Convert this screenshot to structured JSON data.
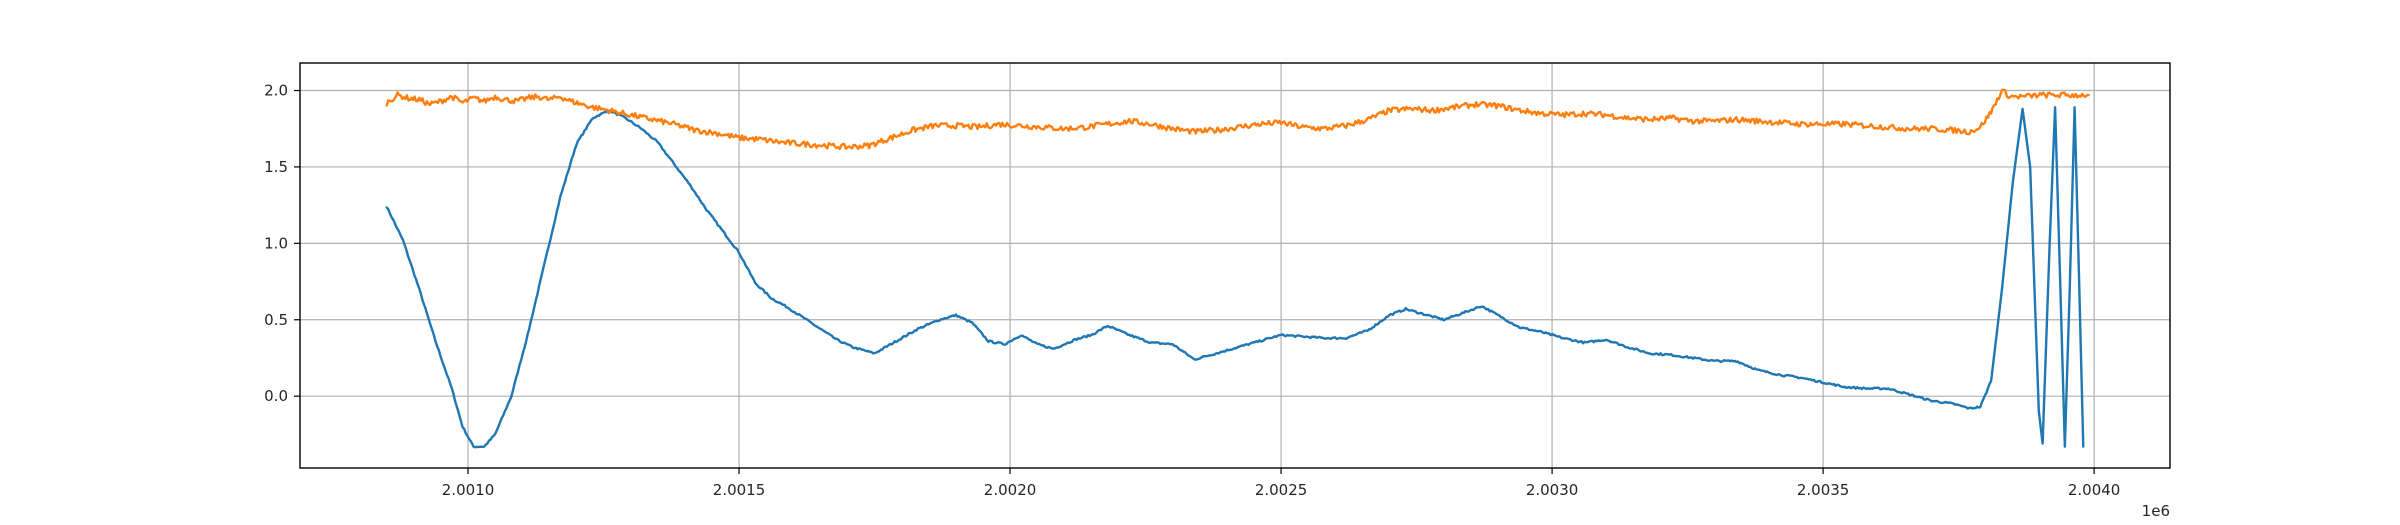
{
  "chart_data": {
    "type": "line",
    "title": "",
    "xlabel": "",
    "ylabel": "",
    "x_offset_label": "1e6",
    "xlim": [
      2000690,
      2004140
    ],
    "ylim": [
      -0.47,
      2.18
    ],
    "grid": true,
    "legend": "none",
    "x_ticks": [
      {
        "value": 2001000,
        "label": "2.0010"
      },
      {
        "value": 2001500,
        "label": "2.0015"
      },
      {
        "value": 2002000,
        "label": "2.0020"
      },
      {
        "value": 2002500,
        "label": "2.0025"
      },
      {
        "value": 2003000,
        "label": "2.0030"
      },
      {
        "value": 2003500,
        "label": "2.0035"
      },
      {
        "value": 2004000,
        "label": "2.0040"
      }
    ],
    "y_ticks": [
      {
        "value": 0.0,
        "label": "0.0"
      },
      {
        "value": 0.5,
        "label": "0.5"
      },
      {
        "value": 1.0,
        "label": "1.0"
      },
      {
        "value": 1.5,
        "label": "1.5"
      },
      {
        "value": 2.0,
        "label": "2.0"
      }
    ],
    "series": [
      {
        "color": "#1f77b4",
        "points": [
          [
            2000850,
            1.24
          ],
          [
            2000880,
            1.02
          ],
          [
            2000910,
            0.7
          ],
          [
            2000940,
            0.36
          ],
          [
            2000970,
            0.05
          ],
          [
            2000990,
            -0.2
          ],
          [
            2001010,
            -0.33
          ],
          [
            2001030,
            -0.33
          ],
          [
            2001050,
            -0.25
          ],
          [
            2001080,
            0.0
          ],
          [
            2001110,
            0.4
          ],
          [
            2001140,
            0.85
          ],
          [
            2001170,
            1.3
          ],
          [
            2001200,
            1.65
          ],
          [
            2001230,
            1.82
          ],
          [
            2001260,
            1.87
          ],
          [
            2001290,
            1.82
          ],
          [
            2001320,
            1.75
          ],
          [
            2001350,
            1.66
          ],
          [
            2001380,
            1.52
          ],
          [
            2001410,
            1.38
          ],
          [
            2001440,
            1.22
          ],
          [
            2001470,
            1.08
          ],
          [
            2001500,
            0.94
          ],
          [
            2001530,
            0.74
          ],
          [
            2001560,
            0.64
          ],
          [
            2001590,
            0.58
          ],
          [
            2001620,
            0.51
          ],
          [
            2001650,
            0.44
          ],
          [
            2001680,
            0.37
          ],
          [
            2001710,
            0.32
          ],
          [
            2001750,
            0.28
          ],
          [
            2001790,
            0.36
          ],
          [
            2001830,
            0.44
          ],
          [
            2001870,
            0.5
          ],
          [
            2001900,
            0.53
          ],
          [
            2001930,
            0.48
          ],
          [
            2001960,
            0.36
          ],
          [
            2001990,
            0.34
          ],
          [
            2002020,
            0.4
          ],
          [
            2002050,
            0.34
          ],
          [
            2002080,
            0.31
          ],
          [
            2002120,
            0.37
          ],
          [
            2002150,
            0.4
          ],
          [
            2002180,
            0.46
          ],
          [
            2002220,
            0.4
          ],
          [
            2002260,
            0.35
          ],
          [
            2002300,
            0.34
          ],
          [
            2002340,
            0.24
          ],
          [
            2002380,
            0.28
          ],
          [
            2002420,
            0.32
          ],
          [
            2002460,
            0.36
          ],
          [
            2002500,
            0.4
          ],
          [
            2002540,
            0.39
          ],
          [
            2002580,
            0.38
          ],
          [
            2002620,
            0.38
          ],
          [
            2002660,
            0.43
          ],
          [
            2002700,
            0.53
          ],
          [
            2002730,
            0.57
          ],
          [
            2002760,
            0.54
          ],
          [
            2002800,
            0.5
          ],
          [
            2002840,
            0.55
          ],
          [
            2002870,
            0.59
          ],
          [
            2002900,
            0.53
          ],
          [
            2002940,
            0.45
          ],
          [
            2002980,
            0.42
          ],
          [
            2003020,
            0.38
          ],
          [
            2003060,
            0.35
          ],
          [
            2003100,
            0.37
          ],
          [
            2003140,
            0.32
          ],
          [
            2003180,
            0.28
          ],
          [
            2003220,
            0.27
          ],
          [
            2003260,
            0.25
          ],
          [
            2003300,
            0.23
          ],
          [
            2003340,
            0.23
          ],
          [
            2003380,
            0.17
          ],
          [
            2003420,
            0.14
          ],
          [
            2003460,
            0.12
          ],
          [
            2003500,
            0.09
          ],
          [
            2003540,
            0.06
          ],
          [
            2003580,
            0.05
          ],
          [
            2003620,
            0.05
          ],
          [
            2003660,
            0.01
          ],
          [
            2003700,
            -0.03
          ],
          [
            2003740,
            -0.05
          ],
          [
            2003770,
            -0.08
          ],
          [
            2003790,
            -0.07
          ],
          [
            2003810,
            0.1
          ],
          [
            2003830,
            0.7
          ],
          [
            2003850,
            1.4
          ],
          [
            2003868,
            1.88
          ],
          [
            2003882,
            1.5
          ],
          [
            2003898,
            -0.1
          ],
          [
            2003905,
            -0.31
          ],
          [
            2003918,
            1.0
          ],
          [
            2003928,
            1.89
          ],
          [
            2003937,
            0.8
          ],
          [
            2003946,
            -0.33
          ],
          [
            2003955,
            0.7
          ],
          [
            2003964,
            1.89
          ],
          [
            2003972,
            0.8
          ],
          [
            2003980,
            -0.33
          ]
        ]
      },
      {
        "color": "#ff7f0e",
        "points": [
          [
            2000850,
            1.92
          ],
          [
            2000870,
            1.97
          ],
          [
            2000890,
            1.95
          ],
          [
            2000910,
            1.94
          ],
          [
            2000930,
            1.91
          ],
          [
            2000950,
            1.93
          ],
          [
            2000970,
            1.96
          ],
          [
            2000990,
            1.92
          ],
          [
            2001010,
            1.95
          ],
          [
            2001030,
            1.93
          ],
          [
            2001050,
            1.96
          ],
          [
            2001070,
            1.94
          ],
          [
            2001090,
            1.93
          ],
          [
            2001110,
            1.95
          ],
          [
            2001130,
            1.96
          ],
          [
            2001150,
            1.94
          ],
          [
            2001170,
            1.96
          ],
          [
            2001190,
            1.93
          ],
          [
            2001210,
            1.91
          ],
          [
            2001230,
            1.89
          ],
          [
            2001260,
            1.87
          ],
          [
            2001300,
            1.84
          ],
          [
            2001340,
            1.81
          ],
          [
            2001380,
            1.78
          ],
          [
            2001420,
            1.74
          ],
          [
            2001460,
            1.72
          ],
          [
            2001500,
            1.69
          ],
          [
            2001540,
            1.68
          ],
          [
            2001580,
            1.66
          ],
          [
            2001620,
            1.65
          ],
          [
            2001660,
            1.64
          ],
          [
            2001700,
            1.63
          ],
          [
            2001740,
            1.64
          ],
          [
            2001780,
            1.69
          ],
          [
            2001820,
            1.74
          ],
          [
            2001860,
            1.77
          ],
          [
            2001900,
            1.77
          ],
          [
            2001940,
            1.76
          ],
          [
            2001980,
            1.78
          ],
          [
            2002020,
            1.77
          ],
          [
            2002060,
            1.76
          ],
          [
            2002100,
            1.75
          ],
          [
            2002140,
            1.76
          ],
          [
            2002180,
            1.78
          ],
          [
            2002220,
            1.8
          ],
          [
            2002260,
            1.78
          ],
          [
            2002300,
            1.75
          ],
          [
            2002340,
            1.73
          ],
          [
            2002380,
            1.74
          ],
          [
            2002420,
            1.76
          ],
          [
            2002460,
            1.78
          ],
          [
            2002500,
            1.79
          ],
          [
            2002540,
            1.76
          ],
          [
            2002580,
            1.75
          ],
          [
            2002620,
            1.77
          ],
          [
            2002660,
            1.81
          ],
          [
            2002700,
            1.87
          ],
          [
            2002740,
            1.88
          ],
          [
            2002780,
            1.87
          ],
          [
            2002820,
            1.89
          ],
          [
            2002860,
            1.91
          ],
          [
            2002900,
            1.9
          ],
          [
            2002940,
            1.87
          ],
          [
            2002980,
            1.85
          ],
          [
            2003020,
            1.84
          ],
          [
            2003060,
            1.85
          ],
          [
            2003100,
            1.84
          ],
          [
            2003140,
            1.82
          ],
          [
            2003180,
            1.81
          ],
          [
            2003220,
            1.82
          ],
          [
            2003260,
            1.8
          ],
          [
            2003300,
            1.8
          ],
          [
            2003340,
            1.81
          ],
          [
            2003380,
            1.8
          ],
          [
            2003420,
            1.79
          ],
          [
            2003460,
            1.78
          ],
          [
            2003500,
            1.78
          ],
          [
            2003540,
            1.78
          ],
          [
            2003580,
            1.77
          ],
          [
            2003620,
            1.76
          ],
          [
            2003660,
            1.75
          ],
          [
            2003700,
            1.75
          ],
          [
            2003740,
            1.74
          ],
          [
            2003770,
            1.73
          ],
          [
            2003790,
            1.76
          ],
          [
            2003810,
            1.86
          ],
          [
            2003830,
            2.0
          ],
          [
            2003845,
            1.96
          ],
          [
            2003870,
            1.96
          ],
          [
            2003900,
            1.97
          ],
          [
            2003930,
            1.97
          ],
          [
            2003960,
            1.97
          ],
          [
            2003990,
            1.97
          ]
        ]
      }
    ]
  }
}
